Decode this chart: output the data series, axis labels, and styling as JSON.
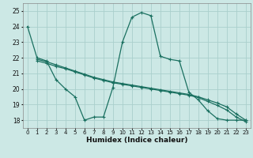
{
  "xlabel": "Humidex (Indice chaleur)",
  "bg_color": "#cce8e5",
  "grid_color": "#aacfcc",
  "line_color": "#1a7060",
  "xlim": [
    -0.5,
    23.5
  ],
  "ylim": [
    17.5,
    25.5
  ],
  "xticks": [
    0,
    1,
    2,
    3,
    4,
    5,
    6,
    7,
    8,
    9,
    10,
    11,
    12,
    13,
    14,
    15,
    16,
    17,
    18,
    19,
    20,
    21,
    22,
    23
  ],
  "yticks": [
    18,
    19,
    20,
    21,
    22,
    23,
    24,
    25
  ],
  "curves": [
    {
      "x": [
        0,
        1,
        2,
        3,
        4,
        5,
        6,
        7,
        8,
        9,
        10,
        11,
        12,
        13,
        14,
        15,
        16,
        17,
        18,
        19,
        20,
        21,
        22,
        23
      ],
      "y": [
        24.0,
        22.0,
        21.8,
        20.6,
        20.0,
        19.5,
        18.0,
        18.2,
        18.2,
        20.1,
        23.0,
        24.6,
        24.9,
        24.7,
        22.1,
        21.9,
        21.8,
        19.8,
        19.3,
        18.6,
        18.1,
        18.0,
        18.0,
        18.0
      ]
    },
    {
      "x": [
        1,
        2,
        3,
        4,
        5,
        6,
        7,
        8,
        9,
        10,
        11,
        12,
        13,
        14,
        15,
        16,
        17,
        18,
        19,
        20,
        21,
        22,
        23
      ],
      "y": [
        21.9,
        21.75,
        21.55,
        21.35,
        21.15,
        20.95,
        20.75,
        20.6,
        20.45,
        20.35,
        20.25,
        20.15,
        20.05,
        19.95,
        19.85,
        19.75,
        19.65,
        19.5,
        19.3,
        19.1,
        18.85,
        18.4,
        18.0
      ]
    },
    {
      "x": [
        1,
        2,
        3,
        4,
        5,
        6,
        7,
        8,
        9,
        10,
        11,
        12,
        13,
        14,
        15,
        16,
        17,
        18,
        19,
        20,
        21,
        22,
        23
      ],
      "y": [
        21.8,
        21.65,
        21.45,
        21.3,
        21.1,
        20.9,
        20.7,
        20.55,
        20.4,
        20.3,
        20.2,
        20.1,
        20.0,
        19.9,
        19.8,
        19.7,
        19.6,
        19.45,
        19.2,
        18.95,
        18.65,
        18.2,
        17.9
      ]
    }
  ]
}
